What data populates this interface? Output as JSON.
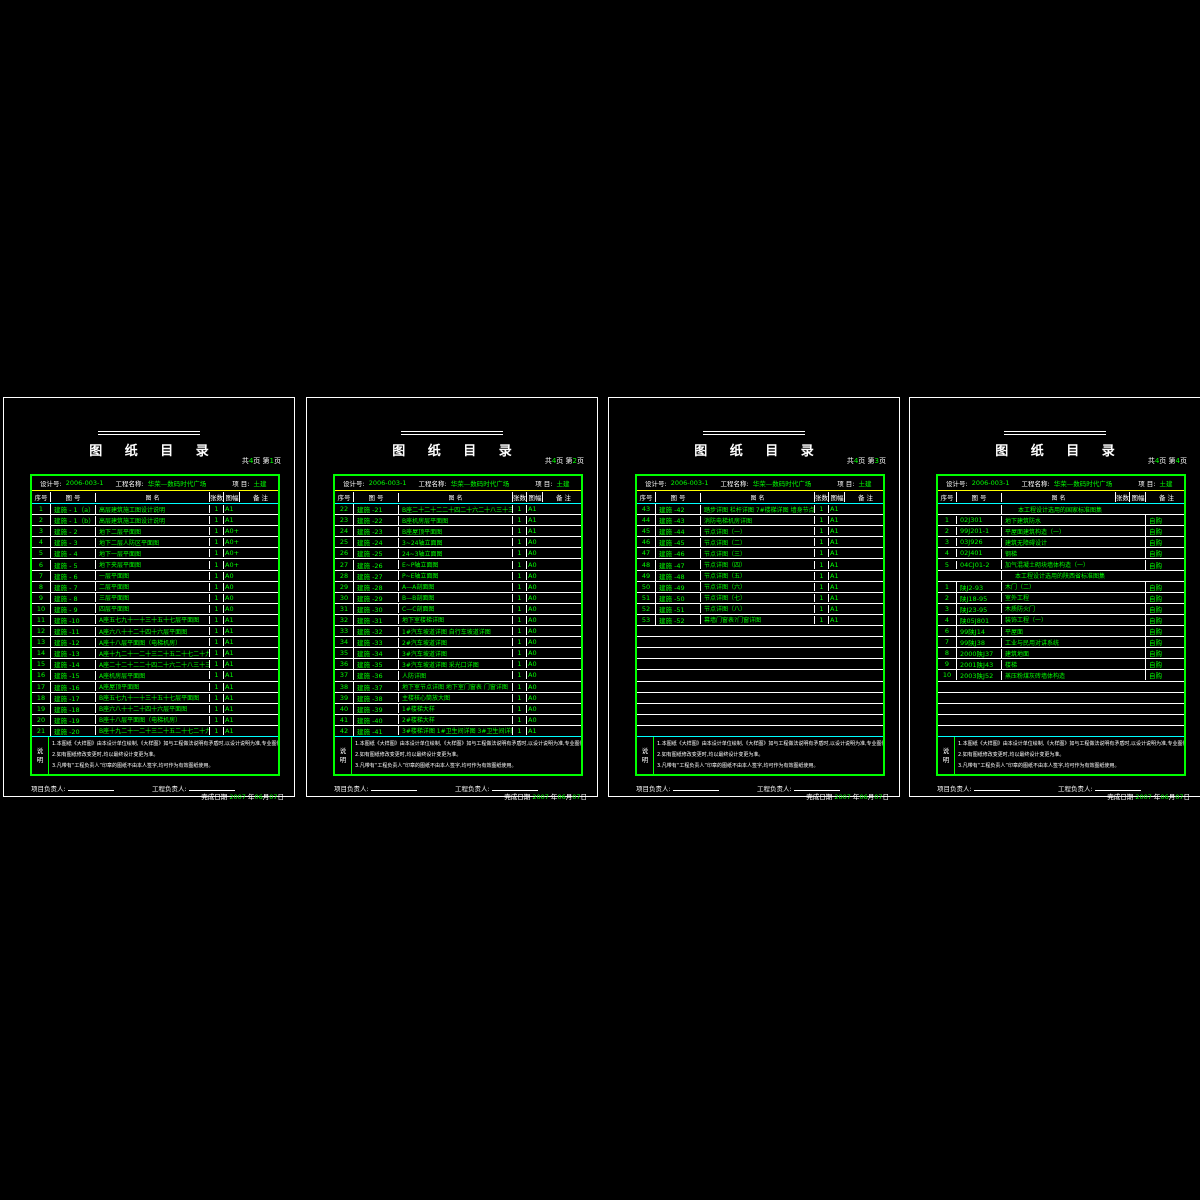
{
  "title": "图  纸  目  录",
  "table_header": {
    "design_label": "设计号:",
    "design_no": "2006-003-1",
    "project_label": "工程名称:",
    "project_name": "华荣—数码时代广场",
    "item_label": "项 目:",
    "item_value": "土建"
  },
  "columns": [
    "序号",
    "图  号",
    "图        名",
    "张数",
    "图幅",
    "备   注"
  ],
  "notes": {
    "label_chars": [
      "说",
      "明"
    ],
    "lines": [
      "1.本图纸《大样图》由本设计单位绘制,《大样图》如与工程做法说明有矛盾时,以设计说明为准,专业图例一致。",
      "2.如有图纸修改变更时,均以最终设计变更为准。",
      "3.凡带有“工程负责人”印章的图纸不由本人签字,均可作为有效图纸使用。"
    ]
  },
  "signatures": {
    "left": "项目负责人:",
    "right": "工程负责人:"
  },
  "date_parts": [
    [
      "完成日期 ",
      "w"
    ],
    [
      "2007",
      "g"
    ],
    [
      " 年",
      "w"
    ],
    [
      "06",
      "g"
    ],
    [
      "月",
      "w"
    ],
    [
      "07",
      "g"
    ],
    [
      "日",
      "w"
    ]
  ],
  "colors": {
    "green": "#00ff00",
    "yellow": "#ffff00",
    "cyan": "#00ffff",
    "white": "#ffffff",
    "background": "#000000"
  },
  "pages": [
    {
      "label_parts": [
        [
          "共",
          "w"
        ],
        [
          "4",
          "g"
        ],
        [
          "页 第",
          "w"
        ],
        [
          "1",
          "g"
        ],
        [
          "页",
          "w"
        ]
      ],
      "rows": [
        [
          "1",
          "建施 - 1（a）",
          "高层建筑施工图设计说明",
          "1",
          "A1",
          ""
        ],
        [
          "2",
          "建施 - 1（b）",
          "高层建筑施工图设计说明",
          "1",
          "A1",
          ""
        ],
        [
          "3",
          "建施 - 2",
          "地下二层平面图",
          "1",
          "A0+",
          ""
        ],
        [
          "4",
          "建施 - 3",
          "地下二层人防区平面图",
          "1",
          "A0+",
          ""
        ],
        [
          "5",
          "建施 - 4",
          "地下一层平面图",
          "1",
          "A0+",
          ""
        ],
        [
          "6",
          "建施 - 5",
          "地下夹层平面图",
          "1",
          "A0+",
          ""
        ],
        [
          "7",
          "建施 - 6",
          "一层平面图",
          "1",
          "A0",
          ""
        ],
        [
          "8",
          "建施 - 7",
          "二层平面图",
          "1",
          "A0",
          ""
        ],
        [
          "9",
          "建施 - 8",
          "三层平面图",
          "1",
          "A0",
          ""
        ],
        [
          "10",
          "建施 - 9",
          "四层平面图",
          "1",
          "A0",
          ""
        ],
        [
          "11",
          "建施 -10",
          "A座五七九十一十三十五十七层平面图",
          "1",
          "A1",
          ""
        ],
        [
          "12",
          "建施 -11",
          "A座六八十十二十四十六层平面图",
          "1",
          "A1",
          ""
        ],
        [
          "13",
          "建施 -12",
          "A座十八层平面图（电梯机房）",
          "1",
          "A1",
          ""
        ],
        [
          "14",
          "建施 -13",
          "A座十九二十一二十三二十五二十七二十九三十一层平面图",
          "1",
          "A1",
          ""
        ],
        [
          "15",
          "建施 -14",
          "A座二十二十二二十四二十六二十八三十三十二层平面图",
          "1",
          "A1",
          ""
        ],
        [
          "16",
          "建施 -15",
          "A座机房层平面图",
          "1",
          "A1",
          ""
        ],
        [
          "17",
          "建施 -16",
          "A座屋顶平面图",
          "1",
          "A1",
          ""
        ],
        [
          "18",
          "建施 -17",
          "B座五七九十一十三十五十七层平面图",
          "1",
          "A1",
          ""
        ],
        [
          "19",
          "建施 -18",
          "B座六八十十二十四十六层平面图",
          "1",
          "A1",
          ""
        ],
        [
          "20",
          "建施 -19",
          "B座十八层平面图（电梯机房）",
          "1",
          "A1",
          ""
        ],
        [
          "21",
          "建施 -20",
          "B座十九二十一二十三二十五二十七二十九三十一层平面图",
          "1",
          "A1",
          ""
        ]
      ]
    },
    {
      "label_parts": [
        [
          "共",
          "w"
        ],
        [
          "4",
          "g"
        ],
        [
          "页 第",
          "w"
        ],
        [
          "2",
          "g"
        ],
        [
          "页",
          "w"
        ]
      ],
      "rows": [
        [
          "22",
          "建施 -21",
          "B座二十二十二二十四二十六二十八三十三十二层平面图",
          "1",
          "A1",
          ""
        ],
        [
          "23",
          "建施 -22",
          "B座机房层平面图",
          "1",
          "A1",
          ""
        ],
        [
          "24",
          "建施 -23",
          "B座屋顶平面图",
          "1",
          "A1",
          ""
        ],
        [
          "25",
          "建施 -24",
          "3~24轴立面图",
          "1",
          "A0",
          ""
        ],
        [
          "26",
          "建施 -25",
          "24~3轴立面图",
          "1",
          "A0",
          ""
        ],
        [
          "27",
          "建施 -26",
          "E~P轴立面图",
          "1",
          "A0",
          ""
        ],
        [
          "28",
          "建施 -27",
          "P~E轴立面图",
          "1",
          "A0",
          ""
        ],
        [
          "29",
          "建施 -28",
          "A—A剖面图",
          "1",
          "A0",
          ""
        ],
        [
          "30",
          "建施 -29",
          "B—B剖面图",
          "1",
          "A0",
          ""
        ],
        [
          "31",
          "建施 -30",
          "C—C剖面图",
          "1",
          "A0",
          ""
        ],
        [
          "32",
          "建施 -31",
          "地下室楼梯详图",
          "1",
          "A0",
          ""
        ],
        [
          "33",
          "建施 -32",
          "1#汽车坡道详图  自行车坡道详图",
          "1",
          "A0",
          ""
        ],
        [
          "34",
          "建施 -33",
          "2#汽车坡道详图",
          "1",
          "A0",
          ""
        ],
        [
          "35",
          "建施 -34",
          "3#汽车坡道详图",
          "1",
          "A0",
          ""
        ],
        [
          "36",
          "建施 -35",
          "3#汽车坡道详图  采光口详图",
          "1",
          "A0",
          ""
        ],
        [
          "37",
          "建施 -36",
          "人防详图",
          "1",
          "A0",
          ""
        ],
        [
          "38",
          "建施 -37",
          "地下室节点详图  地下室门窗表  门窗详图",
          "1",
          "A0",
          ""
        ],
        [
          "39",
          "建施 -38",
          "主楼核心筒放大图",
          "1",
          "A0",
          ""
        ],
        [
          "40",
          "建施 -39",
          "1#楼梯大样",
          "1",
          "A0",
          ""
        ],
        [
          "41",
          "建施 -40",
          "2#楼梯大样",
          "1",
          "A0",
          ""
        ],
        [
          "42",
          "建施 -41",
          "3#楼梯详图 1#卫生间详图 3#卫生间详图",
          "1",
          "A1",
          ""
        ]
      ]
    },
    {
      "label_parts": [
        [
          "共",
          "w"
        ],
        [
          "4",
          "g"
        ],
        [
          "页 第",
          "w"
        ],
        [
          "3",
          "g"
        ],
        [
          "页",
          "w"
        ]
      ],
      "rows": [
        [
          "43",
          "建施 -42",
          "踏步详图 栏杆详图 7#楼梯详图 墙身节点详图",
          "1",
          "A1",
          ""
        ],
        [
          "44",
          "建施 -43",
          "消防电梯机房详图",
          "1",
          "A1",
          ""
        ],
        [
          "45",
          "建施 -44",
          "节点详图（一）",
          "1",
          "A1",
          ""
        ],
        [
          "46",
          "建施 -45",
          "节点详图（二）",
          "1",
          "A1",
          ""
        ],
        [
          "47",
          "建施 -46",
          "节点详图（三）",
          "1",
          "A1",
          ""
        ],
        [
          "48",
          "建施 -47",
          "节点详图（四）",
          "1",
          "A1",
          ""
        ],
        [
          "49",
          "建施 -48",
          "节点详图（五）",
          "1",
          "A1",
          ""
        ],
        [
          "50",
          "建施 -49",
          "节点详图（六）",
          "1",
          "A1",
          ""
        ],
        [
          "51",
          "建施 -50",
          "节点详图（七）",
          "1",
          "A1",
          ""
        ],
        [
          "52",
          "建施 -51",
          "节点详图（八）",
          "1",
          "A1",
          ""
        ],
        [
          "53",
          "建施 -52",
          "幕墙门窗表?门窗详图",
          "1",
          "A1",
          ""
        ],
        null,
        null,
        null,
        null,
        null,
        null,
        null,
        null,
        null,
        null
      ]
    },
    {
      "label_parts": [
        [
          "共",
          "w"
        ],
        [
          "4",
          "g"
        ],
        [
          "页 第",
          "w"
        ],
        [
          "4",
          "g"
        ],
        [
          "页",
          "w"
        ]
      ],
      "rows": [
        {
          "section": "本工程设计选用的国家标准图集"
        },
        [
          "1",
          "02J301",
          "地下建筑防水",
          "",
          "",
          "自购"
        ],
        [
          "2",
          "99J201-1",
          "平屋面建筑构造（一）",
          "",
          "",
          "自购"
        ],
        [
          "3",
          "03J926",
          "建筑无障碍设计",
          "",
          "",
          "自购"
        ],
        [
          "4",
          "02J401",
          "钢梯",
          "",
          "",
          "自购"
        ],
        [
          "5",
          "04CJ01-2",
          "加气混凝土砌块墙体构造（一）",
          "",
          "",
          "自购"
        ],
        {
          "section": "本工程设计选用的陕西省标准图集"
        },
        [
          "1",
          "陕J2-93",
          "木门（二）",
          "",
          "",
          "自购"
        ],
        [
          "2",
          "陕J18-95",
          "室外工程",
          "",
          "",
          "自购"
        ],
        [
          "3",
          "陕J23-95",
          "木质防火门",
          "",
          "",
          "自购"
        ],
        [
          "4",
          "陕05J801",
          "装饰工程（一）",
          "",
          "",
          "自购"
        ],
        [
          "6",
          "99陕J14",
          "平屋面",
          "",
          "",
          "自购"
        ],
        [
          "7",
          "99陕J38",
          "工业与民用对讲系统",
          "",
          "",
          "自购"
        ],
        [
          "8",
          "2000陕J37",
          "建筑地面",
          "",
          "",
          "自购"
        ],
        [
          "9",
          "2001陕J43",
          "楼梯",
          "",
          "",
          "自购"
        ],
        [
          "10",
          "2003陕J52",
          "蒸压粉煤灰砖墙体构造",
          "",
          "",
          "自购"
        ],
        null,
        null,
        null,
        null,
        null
      ]
    }
  ]
}
